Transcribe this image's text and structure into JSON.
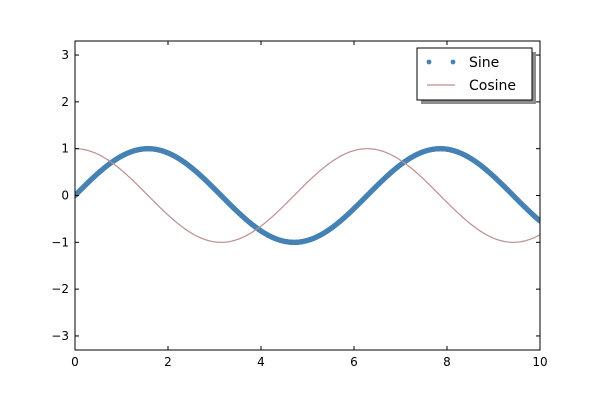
{
  "chart_data": {
    "type": "line",
    "title": "",
    "xlabel": "",
    "ylabel": "",
    "xlim": [
      0,
      10
    ],
    "ylim": [
      -3.3,
      3.3
    ],
    "xticks": [
      0,
      2,
      4,
      6,
      8,
      10
    ],
    "xtick_labels": [
      "0",
      "2",
      "4",
      "6",
      "8",
      "10"
    ],
    "yticks": [
      -3,
      -2,
      -1,
      0,
      1,
      2,
      3
    ],
    "ytick_labels": [
      "−3",
      "−2",
      "−1",
      "0",
      "1",
      "2",
      "3"
    ],
    "grid": false,
    "legend_position": "top-right",
    "series": [
      {
        "name": "Sine",
        "function": "sin(x)",
        "marker": "dot",
        "color": "#4682b4",
        "x": [
          0,
          0.5,
          1,
          1.5,
          2,
          2.5,
          3,
          3.5,
          4,
          4.5,
          5,
          5.5,
          6,
          6.5,
          7,
          7.5,
          8,
          8.5,
          9,
          9.5,
          10
        ],
        "values": [
          0,
          0.479,
          0.841,
          0.997,
          0.909,
          0.598,
          0.141,
          -0.351,
          -0.757,
          -0.978,
          -0.959,
          -0.706,
          -0.279,
          0.215,
          0.657,
          0.938,
          0.989,
          0.798,
          0.412,
          -0.075,
          -0.544
        ]
      },
      {
        "name": "Cosine",
        "function": "cos(x)",
        "marker": "line",
        "color": "#bc8f8f",
        "x": [
          0,
          0.5,
          1,
          1.5,
          2,
          2.5,
          3,
          3.5,
          4,
          4.5,
          5,
          5.5,
          6,
          6.5,
          7,
          7.5,
          8,
          8.5,
          9,
          9.5,
          10
        ],
        "values": [
          1,
          0.878,
          0.54,
          0.071,
          -0.416,
          -0.801,
          -0.99,
          -0.936,
          -0.654,
          -0.211,
          0.284,
          0.709,
          0.96,
          0.977,
          0.754,
          0.347,
          -0.146,
          -0.602,
          -0.911,
          -0.997,
          -0.839
        ]
      }
    ]
  }
}
